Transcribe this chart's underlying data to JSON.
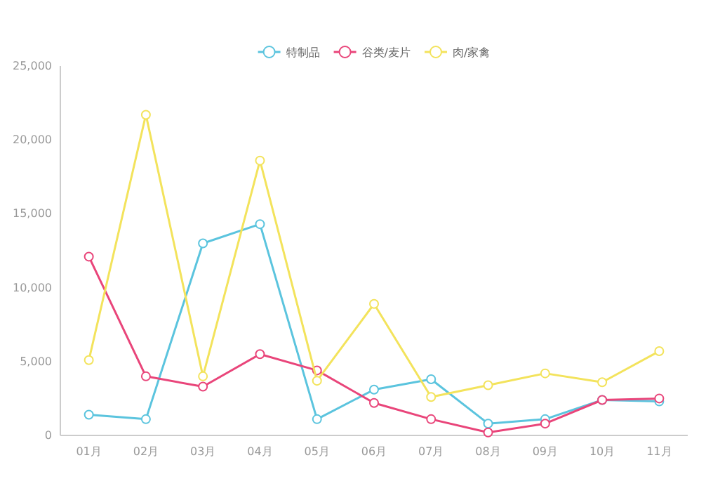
{
  "chart_data": {
    "type": "line",
    "categories": [
      "01月",
      "02月",
      "03月",
      "04月",
      "05月",
      "06月",
      "07月",
      "08月",
      "09月",
      "10月",
      "11月"
    ],
    "series": [
      {
        "name": "特制品",
        "color": "#5bc4de",
        "values": [
          1400,
          1100,
          13000,
          14300,
          1100,
          3100,
          3800,
          800,
          1100,
          2400,
          2300
        ]
      },
      {
        "name": "谷类/麦片",
        "color": "#e9457a",
        "values": [
          12100,
          4000,
          3300,
          5500,
          4400,
          2200,
          1100,
          200,
          800,
          2400,
          2500
        ]
      },
      {
        "name": "肉/家禽",
        "color": "#f3e35c",
        "values": [
          5100,
          21700,
          4000,
          18600,
          3700,
          8900,
          2600,
          3400,
          4200,
          3600,
          5700
        ]
      }
    ],
    "ylim": [
      0,
      25000
    ],
    "yticks": [
      {
        "value": 0,
        "label": "0"
      },
      {
        "value": 5000,
        "label": "5,000"
      },
      {
        "value": 10000,
        "label": "10,000"
      },
      {
        "value": 15000,
        "label": "15,000"
      },
      {
        "value": 20000,
        "label": "20,000"
      },
      {
        "value": 25000,
        "label": "25,000"
      }
    ],
    "grid": false,
    "legend": "top",
    "marker": "circle",
    "line_style": "solid"
  }
}
